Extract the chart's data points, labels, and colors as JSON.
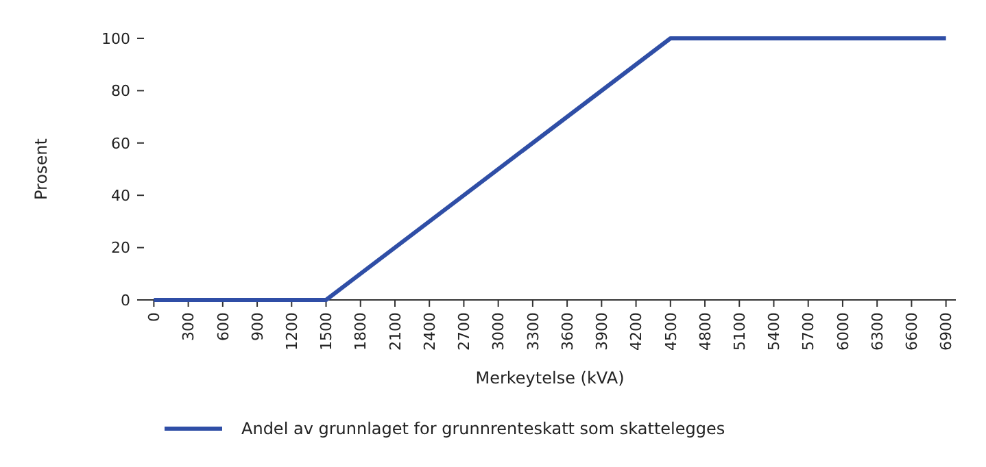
{
  "chart_data": {
    "type": "line",
    "xlabel": "Merkeytelse (kVA)",
    "ylabel": "Prosent",
    "x": [
      0,
      1500,
      4500,
      6900
    ],
    "series": [
      {
        "name": "Andel av grunnlaget for grunnrenteskatt som skattelegges",
        "color": "#2f4ea6",
        "values": [
          0,
          0,
          100,
          100
        ]
      }
    ],
    "xlim": [
      -50,
      6950
    ],
    "xticks": [
      0,
      300,
      600,
      900,
      1200,
      1500,
      1800,
      2100,
      2400,
      2700,
      3000,
      3300,
      3600,
      3900,
      4200,
      4500,
      4800,
      5100,
      5400,
      5700,
      6000,
      6300,
      6600,
      6900
    ],
    "ylim": [
      0,
      100
    ],
    "yticks": [
      0,
      20,
      40,
      60,
      80,
      100
    ],
    "grid": false,
    "legend": "bottom",
    "marker": "none",
    "line_style": "solid"
  }
}
